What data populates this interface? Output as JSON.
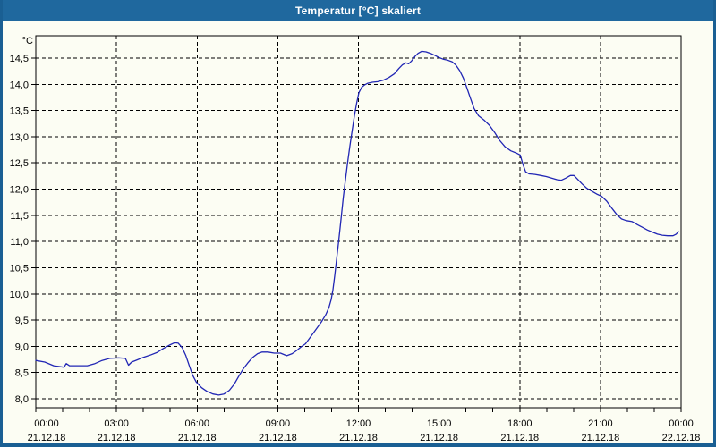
{
  "window": {
    "title": "Temperatur [°C] skaliert"
  },
  "colors": {
    "titlebar": "#1f689e",
    "window_border": "#1a5f93",
    "background": "#fcfdf3",
    "grid": "#000000",
    "text": "#000000",
    "line": "#2126b4"
  },
  "chart_data": {
    "type": "line",
    "title": "Temperatur [°C] skaliert",
    "grid": "dashed",
    "legend": "none",
    "y_axis": {
      "unit": "°C",
      "min": 8.0,
      "max": 14.5,
      "step": 0.5,
      "ticks": [
        {
          "value": 14.5,
          "label": "14,5"
        },
        {
          "value": 14.0,
          "label": "14,0"
        },
        {
          "value": 13.5,
          "label": "13,5"
        },
        {
          "value": 13.0,
          "label": "13,0"
        },
        {
          "value": 12.5,
          "label": "12,5"
        },
        {
          "value": 12.0,
          "label": "12,0"
        },
        {
          "value": 11.5,
          "label": "11,5"
        },
        {
          "value": 11.0,
          "label": "11,0"
        },
        {
          "value": 10.5,
          "label": "10,5"
        },
        {
          "value": 10.0,
          "label": "10,0"
        },
        {
          "value": 9.5,
          "label": "9,5"
        },
        {
          "value": 9.0,
          "label": "9,0"
        },
        {
          "value": 8.5,
          "label": "8,5"
        },
        {
          "value": 8.0,
          "label": "8,0"
        }
      ]
    },
    "x_axis": {
      "range_hours": 24,
      "minor_tick_hours": 1,
      "major_tick_hours": 3,
      "ticks": [
        {
          "hour": 0,
          "time": "00:00",
          "date": "21.12.18"
        },
        {
          "hour": 3,
          "time": "03:00",
          "date": "21.12.18"
        },
        {
          "hour": 6,
          "time": "06:00",
          "date": "21.12.18"
        },
        {
          "hour": 9,
          "time": "09:00",
          "date": "21.12.18"
        },
        {
          "hour": 12,
          "time": "12:00",
          "date": "21.12.18"
        },
        {
          "hour": 15,
          "time": "15:00",
          "date": "21.12.18"
        },
        {
          "hour": 18,
          "time": "18:00",
          "date": "21.12.18"
        },
        {
          "hour": 21,
          "time": "21:00",
          "date": "21.12.18"
        },
        {
          "hour": 24,
          "time": "00:00",
          "date": "22.12.18"
        }
      ]
    },
    "series": [
      {
        "name": "Temperatur",
        "color": "#2126b4",
        "x_unit": "minutes_since_midnight",
        "points": [
          [
            0,
            8.73
          ],
          [
            20,
            8.7
          ],
          [
            40,
            8.63
          ],
          [
            55,
            8.61
          ],
          [
            63,
            8.6
          ],
          [
            68,
            8.67
          ],
          [
            75,
            8.63
          ],
          [
            95,
            8.63
          ],
          [
            115,
            8.63
          ],
          [
            132,
            8.67
          ],
          [
            148,
            8.73
          ],
          [
            165,
            8.77
          ],
          [
            185,
            8.78
          ],
          [
            200,
            8.77
          ],
          [
            207,
            8.64
          ],
          [
            214,
            8.7
          ],
          [
            226,
            8.74
          ],
          [
            240,
            8.79
          ],
          [
            255,
            8.83
          ],
          [
            270,
            8.88
          ],
          [
            285,
            8.96
          ],
          [
            300,
            9.03
          ],
          [
            310,
            9.07
          ],
          [
            318,
            9.06
          ],
          [
            327,
            8.97
          ],
          [
            335,
            8.82
          ],
          [
            343,
            8.62
          ],
          [
            350,
            8.45
          ],
          [
            358,
            8.32
          ],
          [
            370,
            8.21
          ],
          [
            382,
            8.14
          ],
          [
            395,
            8.09
          ],
          [
            408,
            8.07
          ],
          [
            420,
            8.09
          ],
          [
            432,
            8.16
          ],
          [
            443,
            8.28
          ],
          [
            453,
            8.43
          ],
          [
            463,
            8.57
          ],
          [
            473,
            8.68
          ],
          [
            483,
            8.78
          ],
          [
            495,
            8.86
          ],
          [
            505,
            8.89
          ],
          [
            518,
            8.89
          ],
          [
            532,
            8.87
          ],
          [
            546,
            8.87
          ],
          [
            560,
            8.82
          ],
          [
            572,
            8.86
          ],
          [
            582,
            8.92
          ],
          [
            592,
            8.99
          ],
          [
            602,
            9.05
          ],
          [
            614,
            9.19
          ],
          [
            626,
            9.33
          ],
          [
            637,
            9.46
          ],
          [
            647,
            9.6
          ],
          [
            654,
            9.74
          ],
          [
            659,
            9.89
          ],
          [
            663,
            10.08
          ],
          [
            667,
            10.35
          ],
          [
            671,
            10.65
          ],
          [
            676,
            11.02
          ],
          [
            681,
            11.42
          ],
          [
            686,
            11.83
          ],
          [
            691,
            12.18
          ],
          [
            696,
            12.52
          ],
          [
            701,
            12.83
          ],
          [
            706,
            13.12
          ],
          [
            711,
            13.4
          ],
          [
            716,
            13.64
          ],
          [
            721,
            13.84
          ],
          [
            727,
            13.94
          ],
          [
            734,
            13.99
          ],
          [
            741,
            14.02
          ],
          [
            751,
            14.04
          ],
          [
            763,
            14.05
          ],
          [
            776,
            14.08
          ],
          [
            788,
            14.13
          ],
          [
            800,
            14.2
          ],
          [
            810,
            14.3
          ],
          [
            818,
            14.37
          ],
          [
            826,
            14.41
          ],
          [
            832,
            14.39
          ],
          [
            839,
            14.45
          ],
          [
            846,
            14.53
          ],
          [
            853,
            14.59
          ],
          [
            861,
            14.63
          ],
          [
            871,
            14.62
          ],
          [
            881,
            14.59
          ],
          [
            891,
            14.55
          ],
          [
            900,
            14.51
          ],
          [
            909,
            14.48
          ],
          [
            919,
            14.46
          ],
          [
            929,
            14.43
          ],
          [
            937,
            14.37
          ],
          [
            946,
            14.26
          ],
          [
            954,
            14.12
          ],
          [
            962,
            13.93
          ],
          [
            970,
            13.73
          ],
          [
            978,
            13.54
          ],
          [
            988,
            13.4
          ],
          [
            1000,
            13.32
          ],
          [
            1012,
            13.22
          ],
          [
            1024,
            13.08
          ],
          [
            1035,
            12.93
          ],
          [
            1047,
            12.81
          ],
          [
            1060,
            12.73
          ],
          [
            1072,
            12.69
          ],
          [
            1081,
            12.65
          ],
          [
            1087,
            12.47
          ],
          [
            1093,
            12.33
          ],
          [
            1101,
            12.29
          ],
          [
            1114,
            12.28
          ],
          [
            1127,
            12.26
          ],
          [
            1139,
            12.24
          ],
          [
            1151,
            12.21
          ],
          [
            1163,
            12.18
          ],
          [
            1173,
            12.17
          ],
          [
            1183,
            12.21
          ],
          [
            1193,
            12.26
          ],
          [
            1201,
            12.26
          ],
          [
            1209,
            12.19
          ],
          [
            1219,
            12.1
          ],
          [
            1229,
            12.02
          ],
          [
            1241,
            11.96
          ],
          [
            1253,
            11.9
          ],
          [
            1263,
            11.86
          ],
          [
            1274,
            11.77
          ],
          [
            1286,
            11.63
          ],
          [
            1297,
            11.51
          ],
          [
            1307,
            11.43
          ],
          [
            1317,
            11.4
          ],
          [
            1331,
            11.38
          ],
          [
            1343,
            11.32
          ],
          [
            1354,
            11.27
          ],
          [
            1365,
            11.22
          ],
          [
            1376,
            11.18
          ],
          [
            1387,
            11.14
          ],
          [
            1398,
            11.12
          ],
          [
            1410,
            11.11
          ],
          [
            1422,
            11.11
          ],
          [
            1429,
            11.14
          ],
          [
            1434,
            11.19
          ]
        ]
      }
    ]
  }
}
